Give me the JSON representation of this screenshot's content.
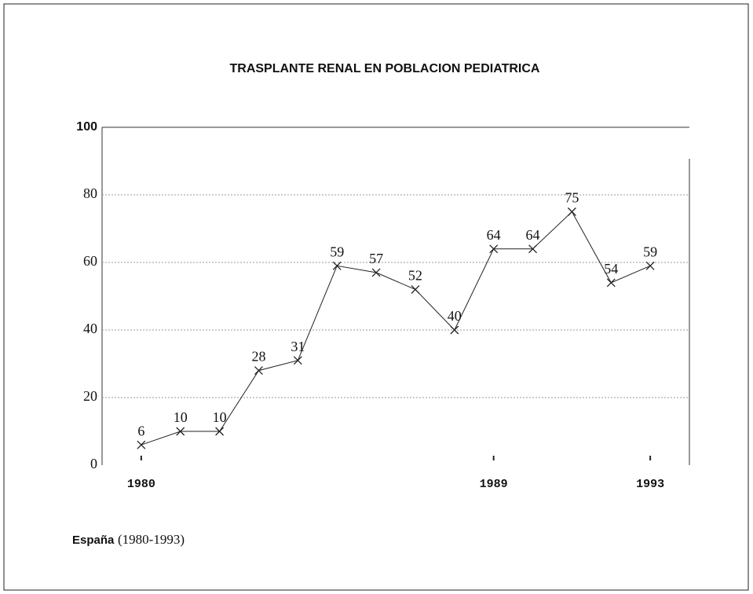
{
  "chart_data": {
    "type": "line",
    "title": "TRASPLANTE RENAL EN POBLACION PEDIATRICA",
    "note_bold": "España",
    "note": "(1980-1993)",
    "x": [
      1980,
      1981,
      1982,
      1983,
      1984,
      1985,
      1986,
      1987,
      1988,
      1989,
      1990,
      1991,
      1992,
      1993
    ],
    "values": [
      6,
      10,
      10,
      28,
      31,
      59,
      57,
      52,
      40,
      64,
      64,
      75,
      54,
      59
    ],
    "xlim": [
      1979,
      1994
    ],
    "xticks": [
      1980,
      1989,
      1993
    ],
    "ylim": [
      0,
      100
    ],
    "yticks": [
      0,
      20,
      40,
      60,
      80,
      100
    ],
    "color": "#222",
    "grid": true
  }
}
